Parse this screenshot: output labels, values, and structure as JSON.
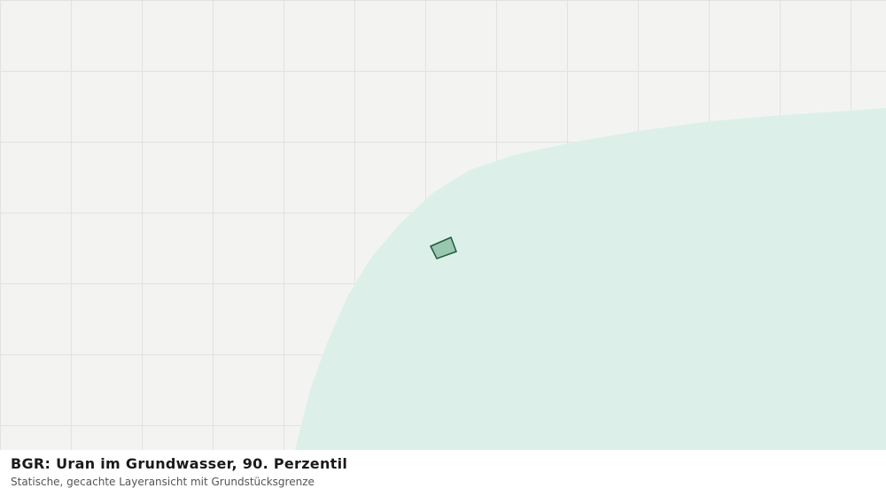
{
  "title": "BGR: Uran im Grundwasser, 90. Perzentil",
  "subtitle": "Statische, gecachte Layeransicht mit Grundstücksgrenze"
}
